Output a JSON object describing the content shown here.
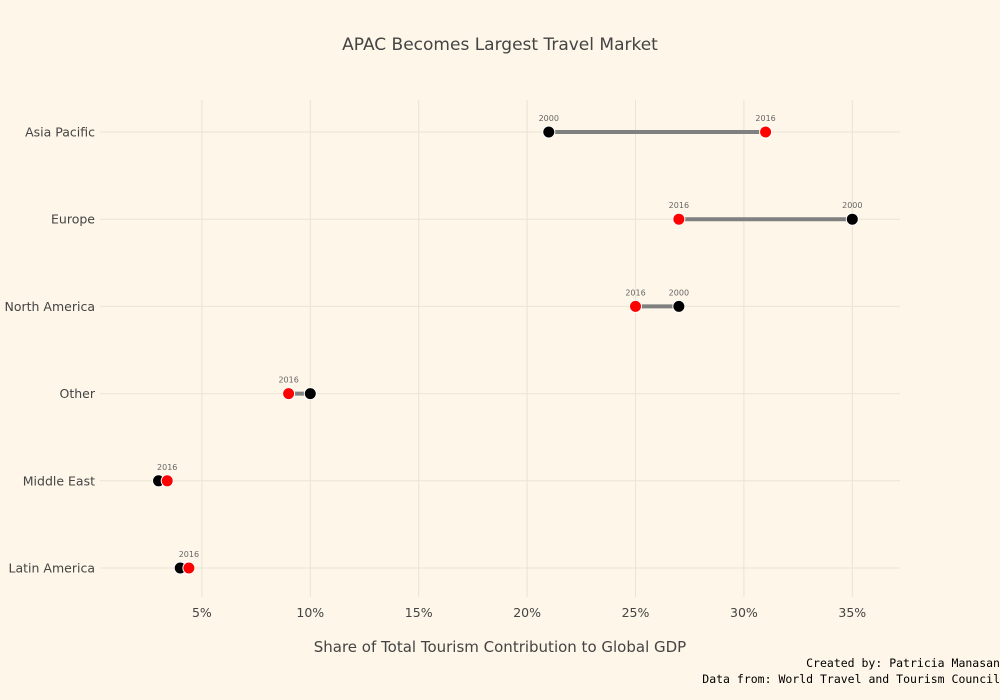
{
  "chart_data": {
    "type": "dumbbell",
    "title": "APAC Becomes Largest Travel Market",
    "xlabel": "Share of Total Tourism Contribution to Global GDP",
    "ylabel": "",
    "xlim": [
      0.3,
      37.2
    ],
    "x_ticks": [
      5,
      10,
      15,
      20,
      25,
      30,
      35
    ],
    "x_tick_labels": [
      "5%",
      "10%",
      "15%",
      "20%",
      "25%",
      "30%",
      "35%"
    ],
    "grid": true,
    "categories": [
      "Asia Pacific",
      "Europe",
      "North America",
      "Other",
      "Middle East",
      "Latin America"
    ],
    "series": [
      {
        "name": "2000",
        "color": "#000000",
        "values": [
          21,
          35,
          27,
          10,
          3,
          4
        ]
      },
      {
        "name": "2016",
        "color": "#ff0000",
        "values": [
          31,
          27,
          25,
          9,
          3.4,
          4.4
        ]
      }
    ],
    "annotations": [
      {
        "category": "Asia Pacific",
        "labels": [
          "2000",
          "2016"
        ]
      },
      {
        "category": "Europe",
        "labels": [
          "2016",
          "2000"
        ]
      },
      {
        "category": "North America",
        "labels": [
          "2016",
          "2000"
        ]
      },
      {
        "category": "Other",
        "labels": [
          "2016"
        ]
      },
      {
        "category": "Middle East",
        "labels": [
          "2016"
        ]
      },
      {
        "category": "Latin America",
        "labels": [
          "2016"
        ]
      }
    ],
    "connector_color": "#808080"
  },
  "credits": {
    "line1": "Created by: Patricia Manasan",
    "line2": "Data from: World Travel and Tourism Council"
  }
}
